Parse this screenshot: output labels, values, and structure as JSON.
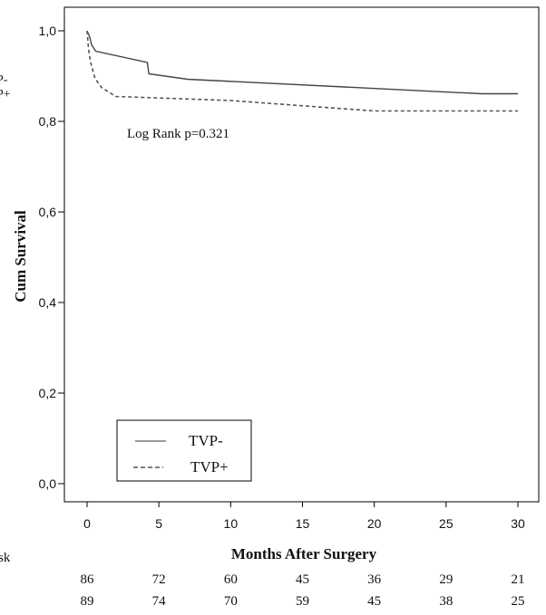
{
  "chart_data": {
    "type": "line",
    "subtype": "kaplan-meier",
    "title": "",
    "xlabel": "Months After Surgery",
    "ylabel": "Cum Survival",
    "xlim": [
      0,
      30
    ],
    "ylim": [
      0,
      1.0
    ],
    "x_ticks": [
      "0",
      "5",
      "10",
      "15",
      "20",
      "25",
      "30"
    ],
    "y_ticks": [
      "0,0",
      "0,2",
      "0,4",
      "0,6",
      "0,8",
      "1,0"
    ],
    "grid": false,
    "annotation": "Log Rank  p=0.321",
    "legend_position": "bottom-left",
    "series": [
      {
        "name": "TVP-",
        "line_style": "solid",
        "color": "#444444",
        "x": [
          0,
          0.2,
          0.3,
          0.6,
          4.2,
          4.3,
          7,
          27.5,
          30
        ],
        "y": [
          1.0,
          0.985,
          0.97,
          0.955,
          0.93,
          0.905,
          0.893,
          0.861,
          0.861
        ]
      },
      {
        "name": "TVP+",
        "line_style": "dashed",
        "color": "#555555",
        "x": [
          0,
          0.1,
          0.25,
          0.55,
          1.0,
          2.0,
          10,
          20,
          30
        ],
        "y": [
          1.0,
          0.96,
          0.93,
          0.895,
          0.875,
          0.855,
          0.846,
          0.823,
          0.823
        ]
      }
    ],
    "risk_table": {
      "label_fragment": "sk",
      "rows": [
        [
          86,
          72,
          60,
          45,
          36,
          29,
          21
        ],
        [
          89,
          74,
          70,
          59,
          45,
          38,
          25
        ]
      ]
    },
    "cropped_left_text": [
      "P-",
      "P+"
    ]
  }
}
